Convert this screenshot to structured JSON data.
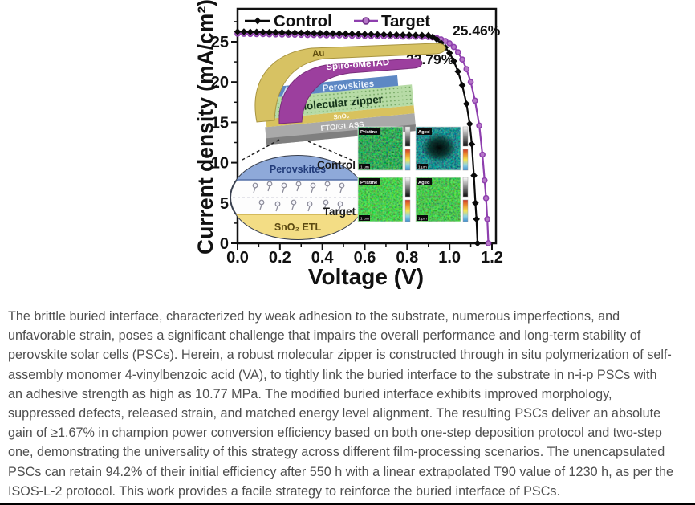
{
  "chart_data": {
    "type": "line",
    "title": "",
    "xlabel": "Voltage (V)",
    "ylabel": "Current density (mA/cm²)",
    "xlim": [
      0,
      1.22
    ],
    "ylim": [
      0,
      29
    ],
    "grid": false,
    "legend_position": "top-inside",
    "x_tick_values": [
      0.0,
      0.2,
      0.4,
      0.6,
      0.8,
      1.0,
      1.2
    ],
    "x_tick_labels": [
      "0.0",
      "0.2",
      "0.4",
      "0.6",
      "0.8",
      "1.0",
      "1.2"
    ],
    "x_minor_ticks": [
      0.1,
      0.3,
      0.5,
      0.7,
      0.9,
      1.1
    ],
    "y_tick_values": [
      0,
      5,
      10,
      15,
      20,
      25
    ],
    "y_tick_labels": [
      "0",
      "5",
      "10",
      "15",
      "20",
      "25"
    ],
    "y_minor_ticks": [
      2.5,
      7.5,
      12.5,
      17.5,
      22.5,
      27.5
    ],
    "series": [
      {
        "name": "Control",
        "color": "#0a0a0a",
        "marker": "diamond",
        "marker_fill": "#0a0a0a",
        "pce_label": "23.79%",
        "points": [
          [
            0,
            26.25
          ],
          [
            0.03,
            26.24
          ],
          [
            0.06,
            26.22
          ],
          [
            0.09,
            26.21
          ],
          [
            0.12,
            26.19
          ],
          [
            0.15,
            26.18
          ],
          [
            0.18,
            26.16
          ],
          [
            0.21,
            26.15
          ],
          [
            0.24,
            26.13
          ],
          [
            0.27,
            26.12
          ],
          [
            0.3,
            26.1
          ],
          [
            0.33,
            26.09
          ],
          [
            0.36,
            26.07
          ],
          [
            0.39,
            26.06
          ],
          [
            0.42,
            26.04
          ],
          [
            0.45,
            26.03
          ],
          [
            0.48,
            26.01
          ],
          [
            0.51,
            26.0
          ],
          [
            0.54,
            25.98
          ],
          [
            0.57,
            25.97
          ],
          [
            0.6,
            25.95
          ],
          [
            0.63,
            25.94
          ],
          [
            0.66,
            25.92
          ],
          [
            0.69,
            25.91
          ],
          [
            0.72,
            25.89
          ],
          [
            0.75,
            25.88
          ],
          [
            0.78,
            25.86
          ],
          [
            0.81,
            25.85
          ],
          [
            0.84,
            25.83
          ],
          [
            0.87,
            25.82
          ],
          [
            0.9,
            25.8
          ],
          [
            0.92,
            25.6
          ],
          [
            0.94,
            25.3
          ],
          [
            0.96,
            24.85
          ],
          [
            0.98,
            24.3
          ],
          [
            1.0,
            23.6
          ],
          [
            1.02,
            22.6
          ],
          [
            1.04,
            21.3
          ],
          [
            1.06,
            19.6
          ],
          [
            1.08,
            17.3
          ],
          [
            1.095,
            14.8
          ],
          [
            1.105,
            12.3
          ],
          [
            1.115,
            8.4
          ],
          [
            1.122,
            5.0
          ],
          [
            1.127,
            3.0
          ],
          [
            1.132,
            0.0
          ]
        ]
      },
      {
        "name": "Target",
        "color": "#8e3fae",
        "marker": "circle",
        "marker_fill": "#b678c8",
        "pce_label": "25.46%",
        "points": [
          [
            0,
            26.0
          ],
          [
            0.03,
            25.99
          ],
          [
            0.06,
            25.97
          ],
          [
            0.09,
            25.96
          ],
          [
            0.12,
            25.95
          ],
          [
            0.15,
            25.93
          ],
          [
            0.18,
            25.92
          ],
          [
            0.21,
            25.91
          ],
          [
            0.24,
            25.89
          ],
          [
            0.27,
            25.88
          ],
          [
            0.3,
            25.87
          ],
          [
            0.33,
            25.85
          ],
          [
            0.36,
            25.84
          ],
          [
            0.39,
            25.83
          ],
          [
            0.42,
            25.81
          ],
          [
            0.45,
            25.8
          ],
          [
            0.48,
            25.79
          ],
          [
            0.51,
            25.77
          ],
          [
            0.54,
            25.76
          ],
          [
            0.57,
            25.75
          ],
          [
            0.6,
            25.73
          ],
          [
            0.63,
            25.72
          ],
          [
            0.66,
            25.71
          ],
          [
            0.69,
            25.69
          ],
          [
            0.72,
            25.68
          ],
          [
            0.75,
            25.67
          ],
          [
            0.78,
            25.65
          ],
          [
            0.81,
            25.64
          ],
          [
            0.84,
            25.63
          ],
          [
            0.87,
            25.61
          ],
          [
            0.9,
            25.6
          ],
          [
            0.92,
            25.55
          ],
          [
            0.94,
            25.45
          ],
          [
            0.96,
            25.3
          ],
          [
            0.98,
            25.1
          ],
          [
            1.0,
            24.8
          ],
          [
            1.02,
            24.35
          ],
          [
            1.04,
            23.7
          ],
          [
            1.06,
            22.8
          ],
          [
            1.08,
            21.6
          ],
          [
            1.1,
            20.0
          ],
          [
            1.12,
            17.7
          ],
          [
            1.14,
            14.6
          ],
          [
            1.155,
            11.0
          ],
          [
            1.165,
            7.8
          ],
          [
            1.172,
            5.6
          ],
          [
            1.178,
            3.0
          ],
          [
            1.183,
            0.0
          ]
        ]
      }
    ]
  },
  "device_stack": {
    "layers": [
      "Au",
      "Spiro-oMeTAD",
      "Perovskites",
      "Molecular zipper",
      "SnO₂",
      "FTO/GLASS"
    ]
  },
  "zipper_inset": {
    "top_label": "Perovskites",
    "bottom_label": "SnO₂ ETL"
  },
  "microscopy": {
    "row_labels": [
      "Control",
      "Target"
    ],
    "col_labels": [
      "Pristine",
      "Aged"
    ],
    "scale_label": "1 μm"
  },
  "abstract": {
    "lines": [
      "The brittle buried interface, characterized by weak adhesion to the substrate, numerous imperfections, and",
      "unfavorable strain, poses a significant challenge that impairs the overall performance and long-term stability of",
      "perovskite solar cells (PSCs). Herein, a robust molecular zipper is constructed through in situ polymerization of self-",
      "assembly monomer 4-vinylbenzoic acid (VA), to tightly link the buried interface to the substrate in n-i-p PSCs with",
      "an adhesive strength as high as 10.77 MPa. The modified buried interface exhibits improved morphology,",
      "suppressed defects, released strain, and matched energy level alignment. The resulting PSCs deliver an absolute",
      "gain of ≥1.67% in champion power conversion efficiency based on both one-step deposition protocol and two-step",
      "one, demonstrating the universality of this strategy across different film-processing scenarios. The unencapsulated",
      "PSCs can retain 94.2% of their initial efficiency after 550 h with a linear extrapolated T90 value of 1230 h, as per the",
      "ISOS-L-2 protocol. This work provides a facile strategy to reinforce the buried interface of PSCs."
    ]
  },
  "colors": {
    "control": "#0a0a0a",
    "target": "#8e3fae",
    "au_layer": "#d7c263",
    "spiro_layer": "#9c3f9e",
    "perovskite_layer": "#5d88c4",
    "zipper_layer": "#b7dba6",
    "fto_layer": "#a9a9a9"
  }
}
